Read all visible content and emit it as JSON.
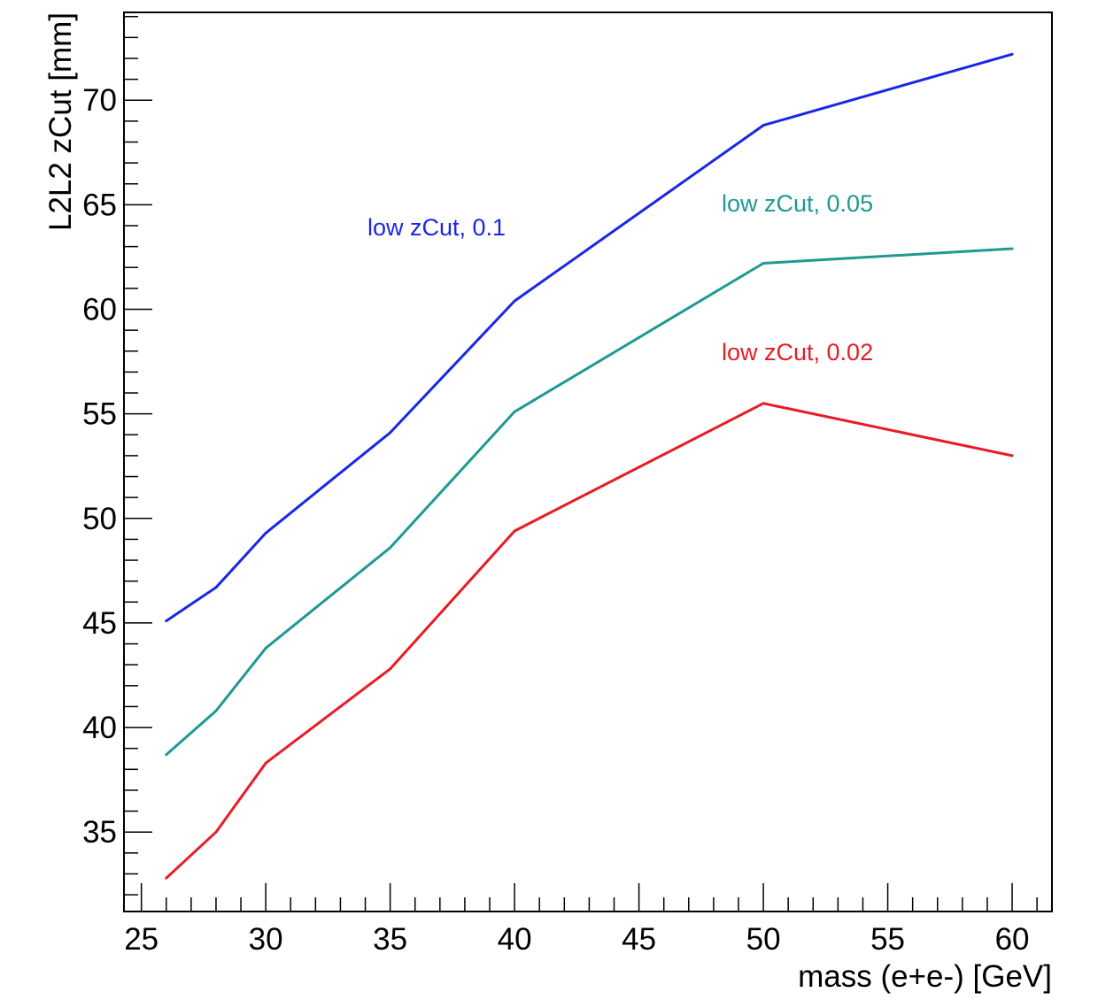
{
  "chart_data": {
    "type": "line",
    "title": "",
    "xlabel": "mass (e+e-) [GeV]",
    "ylabel": "L2L2 zCut [mm]",
    "xlim": [
      24.3,
      61.6
    ],
    "ylim": [
      31.2,
      74.2
    ],
    "x_ticks": [
      25,
      30,
      35,
      40,
      45,
      50,
      55,
      60
    ],
    "y_ticks": [
      35,
      40,
      45,
      50,
      55,
      60,
      65,
      70
    ],
    "grid": false,
    "x": [
      26,
      28,
      30,
      35,
      40,
      50,
      60
    ],
    "series": [
      {
        "name": "low zCut, 0.1",
        "color": "#1a27e6",
        "values": [
          45.1,
          46.7,
          49.3,
          54.1,
          60.4,
          68.8,
          72.2
        ]
      },
      {
        "name": "low zCut, 0.05",
        "color": "#1f9991",
        "values": [
          38.7,
          40.8,
          43.8,
          48.6,
          55.1,
          62.2,
          62.9
        ]
      },
      {
        "name": "low zCut, 0.02",
        "color": "#e81c24",
        "values": [
          32.8,
          35.0,
          38.3,
          42.8,
          49.4,
          55.5,
          53.0
        ]
      }
    ]
  }
}
